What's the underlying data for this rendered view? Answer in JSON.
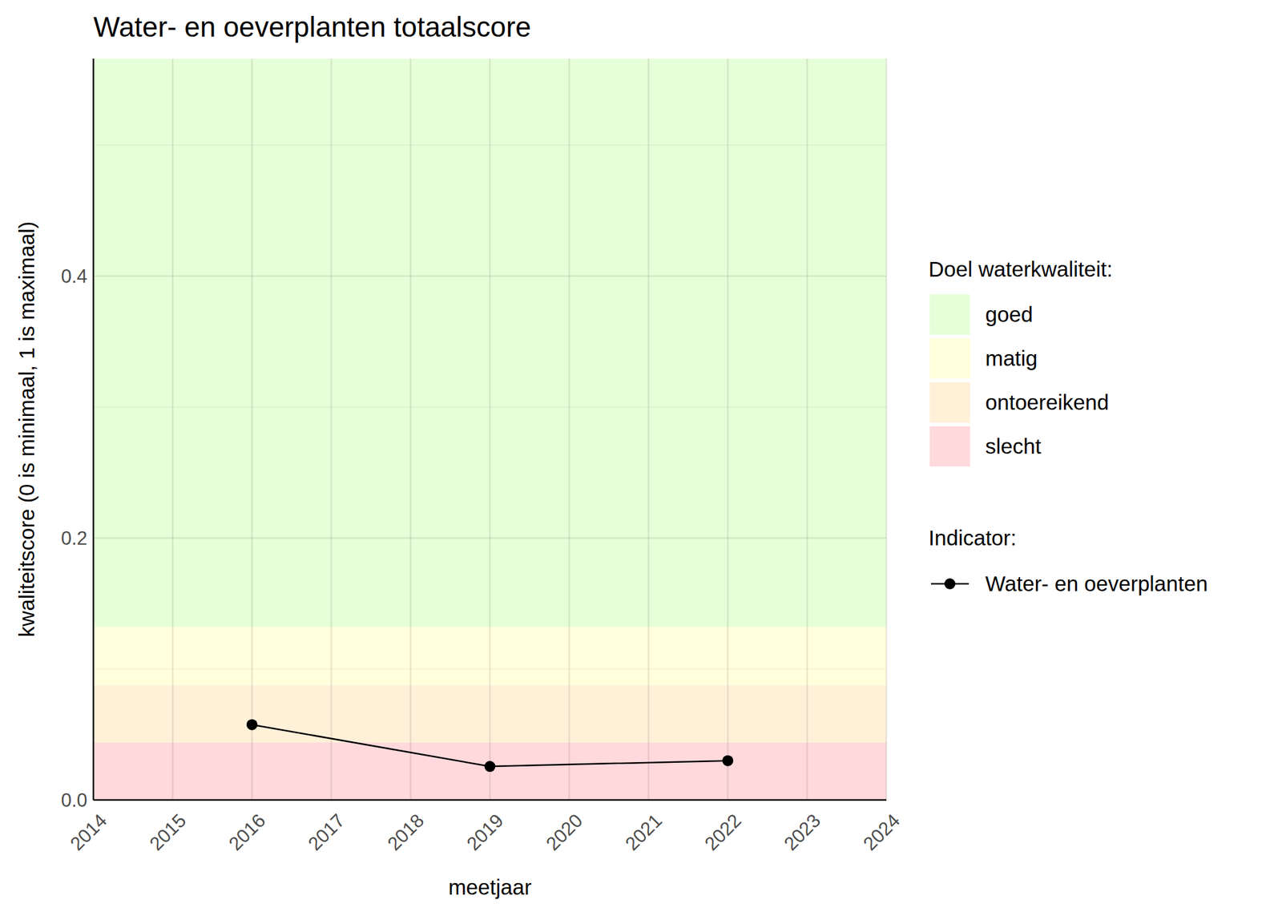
{
  "chart_data": {
    "type": "line",
    "title": "Water- en oeverplanten totaalscore",
    "x_label": "meetjaar",
    "y_label": "kwaliteitscore (0 is minimaal, 1 is maximaal)",
    "x": [
      2016,
      2019,
      2022
    ],
    "series": [
      {
        "name": "Water- en oeverplanten",
        "color": "#000000",
        "marker": "circle",
        "line_style": "solid",
        "values": [
          0.0575,
          0.0256,
          0.03
        ]
      }
    ],
    "xlim": [
      2014,
      2024
    ],
    "xticks": [
      2014,
      2015,
      2016,
      2017,
      2018,
      2019,
      2020,
      2021,
      2022,
      2023,
      2024
    ],
    "ylim": [
      0,
      0.566
    ],
    "yticks": [
      {
        "value": 0,
        "label": "0.0"
      },
      0.2,
      0.4
    ],
    "grid": true,
    "legend_title": "Doel waterkwaliteit:",
    "series_legend_title": "Indicator:",
    "bands": [
      {
        "name": "goed",
        "color": "#e6ffd8",
        "from": 0.132,
        "to": 0.566
      },
      {
        "name": "matig",
        "color": "#ffffdc",
        "from": 0.0875,
        "to": 0.132
      },
      {
        "name": "ontoereikend",
        "color": "#fff0d8",
        "from": 0.0438,
        "to": 0.0875
      },
      {
        "name": "slecht",
        "color": "#ffd9dc",
        "from": 0,
        "to": 0.0438
      }
    ]
  }
}
